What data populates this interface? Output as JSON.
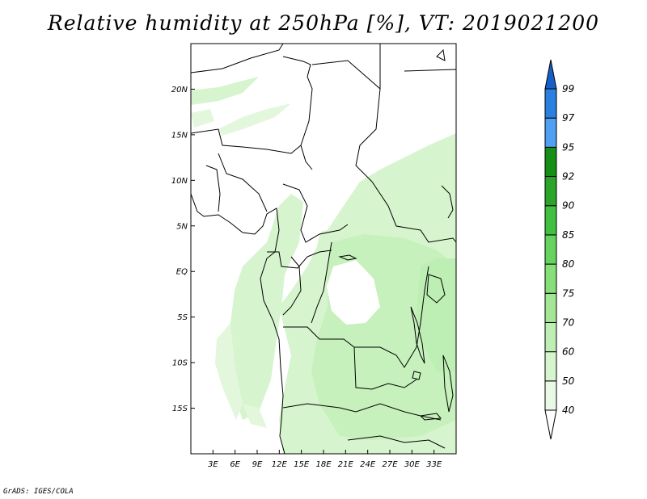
{
  "title": "Relative humidity at 250hPa [%], VT: 2019021200",
  "footer": "GrADS: IGES/COLA",
  "map": {
    "lon_range": [
      0,
      36
    ],
    "lat_range": [
      -20,
      25
    ],
    "lat_ticks": [
      "20N",
      "15N",
      "10N",
      "5N",
      "EQ",
      "5S",
      "10S",
      "15S"
    ],
    "lon_ticks": [
      "3E",
      "6E",
      "9E",
      "12E",
      "15E",
      "18E",
      "21E",
      "24E",
      "27E",
      "30E",
      "33E"
    ]
  },
  "colorbar": {
    "levels": [
      "40",
      "50",
      "60",
      "70",
      "75",
      "80",
      "85",
      "90",
      "92",
      "95",
      "97",
      "99"
    ],
    "colors": [
      "#ffffff",
      "#eaf9e6",
      "#d6f4cd",
      "#bdeeb3",
      "#a3e796",
      "#87df79",
      "#66d35e",
      "#42c042",
      "#2aa52a",
      "#178f17",
      "#4f9ff2",
      "#2b7fe0",
      "#1560c8"
    ]
  }
}
